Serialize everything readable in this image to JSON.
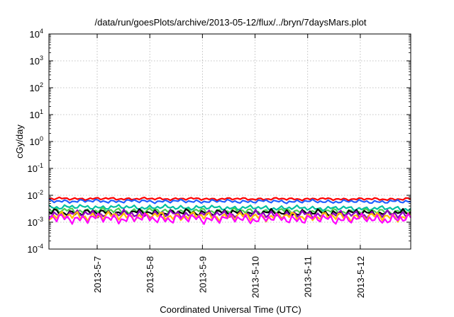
{
  "chart_data": {
    "type": "line",
    "title": "/data/run/goesPlots/archive/2013-05-12/flux/../bryn/7daysMars.plot",
    "xlabel": "Coordinated Universal Time (UTC)",
    "ylabel": "cGy/day",
    "y_scale": "log",
    "ylim": [
      0.0001,
      10000
    ],
    "xlim": [
      "2013-05-06 02:00",
      "2013-05-12 23:00"
    ],
    "y_ticks": [
      {
        "value": 0.0001,
        "base": "10",
        "exp": "-4"
      },
      {
        "value": 0.001,
        "base": "10",
        "exp": "-3"
      },
      {
        "value": 0.01,
        "base": "10",
        "exp": "-2"
      },
      {
        "value": 0.1,
        "base": "10",
        "exp": "-1"
      },
      {
        "value": 1,
        "base": "10",
        "exp": "0"
      },
      {
        "value": 10,
        "base": "10",
        "exp": "1"
      },
      {
        "value": 100,
        "base": "10",
        "exp": "2"
      },
      {
        "value": 1000,
        "base": "10",
        "exp": "3"
      },
      {
        "value": 10000,
        "base": "10",
        "exp": "4"
      }
    ],
    "x_ticks": [
      {
        "value": "2013-05-07 00:00",
        "label": "2013-5-7"
      },
      {
        "value": "2013-05-08 00:00",
        "label": "2013-5-8"
      },
      {
        "value": "2013-05-09 00:00",
        "label": "2013-5-9"
      },
      {
        "value": "2013-05-10 00:00",
        "label": "2013-5-10"
      },
      {
        "value": "2013-05-11 00:00",
        "label": "2013-5-11"
      },
      {
        "value": "2013-05-12 00:00",
        "label": "2013-5-12"
      }
    ],
    "grid": true,
    "legend": "none",
    "series": [
      {
        "color": "#ff0000",
        "y_start": 0.0075,
        "y_end": 0.0072
      },
      {
        "color": "#1f5fff",
        "y_start": 0.0061,
        "y_end": 0.0058
      },
      {
        "color": "#00c0a0",
        "y_start": 0.0037,
        "y_end": 0.0032
      },
      {
        "color": "#50d050",
        "y_start": 0.0027,
        "y_end": 0.0025
      },
      {
        "color": "#000000",
        "y_start": 0.0023,
        "y_end": 0.0022
      },
      {
        "color": "#9000c0",
        "y_start": 0.002,
        "y_end": 0.0019
      },
      {
        "color": "#ffc000",
        "y_start": 0.0017,
        "y_end": 0.0016
      },
      {
        "color": "#ff00ff",
        "y_start": 0.0014,
        "y_end": 0.0013
      }
    ]
  }
}
